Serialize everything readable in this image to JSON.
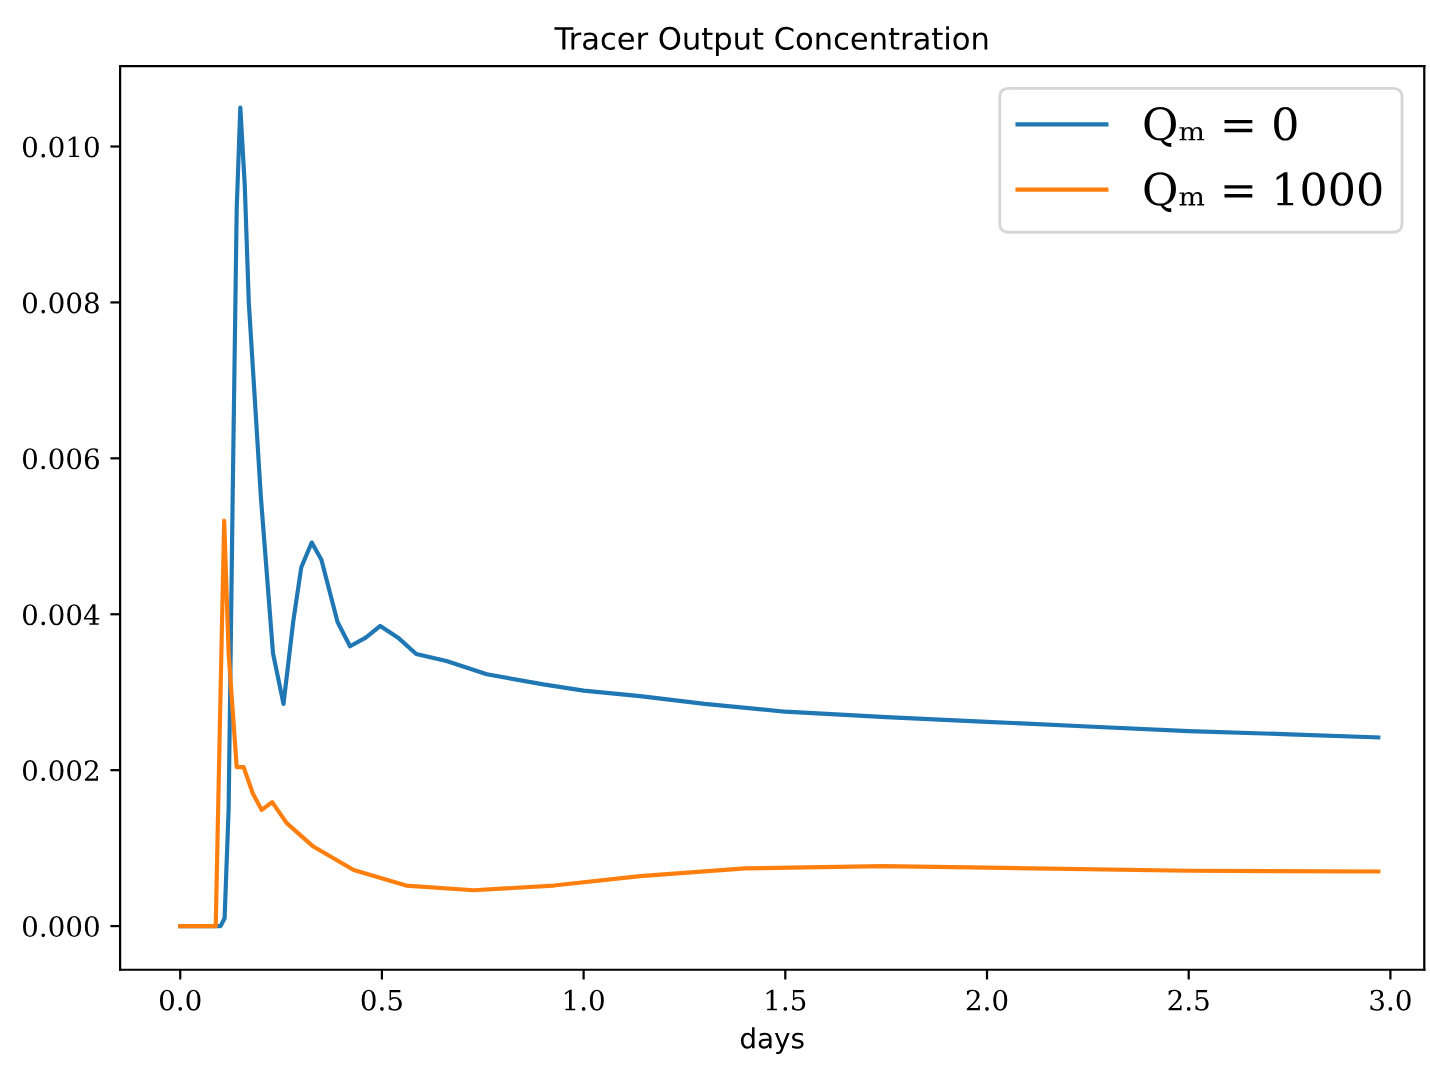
{
  "chart_data": {
    "type": "line",
    "title": "Tracer Output Concentration",
    "xlabel": "days",
    "xlim": [
      -0.149,
      3.084
    ],
    "ylim": [
      -0.00056,
      0.01103
    ],
    "xticks": [
      {
        "value": 0,
        "label": "0.0"
      },
      {
        "value": 0.5,
        "label": "0.5"
      },
      {
        "value": 1,
        "label": "1.0"
      },
      {
        "value": 1.5,
        "label": "1.5"
      },
      {
        "value": 2,
        "label": "2.0"
      },
      {
        "value": 2.5,
        "label": "2.5"
      },
      {
        "value": 3,
        "label": "3.0"
      }
    ],
    "yticks": [
      {
        "value": 0,
        "label": "0.000"
      },
      {
        "value": 0.002,
        "label": "0.002"
      },
      {
        "value": 0.004,
        "label": "0.004"
      },
      {
        "value": 0.006,
        "label": "0.006"
      },
      {
        "value": 0.008,
        "label": "0.008"
      },
      {
        "value": 0.01,
        "label": "0.010"
      }
    ],
    "grid": false,
    "legend": "top right",
    "series": [
      {
        "name": "Qₘ = 0",
        "color": "#1f77b4",
        "x": [
          0,
          0.1,
          0.11,
          0.12,
          0.13,
          0.14,
          0.149,
          0.16,
          0.17,
          0.2,
          0.23,
          0.256,
          0.28,
          0.3,
          0.326,
          0.35,
          0.39,
          0.421,
          0.46,
          0.496,
          0.54,
          0.585,
          0.66,
          0.76,
          0.9,
          1.0,
          1.14,
          1.3,
          1.5,
          1.75,
          2.0,
          2.25,
          2.5,
          2.75,
          2.97
        ],
        "values": [
          0,
          0,
          0.0001,
          0.0015,
          0.0055,
          0.0092,
          0.0105,
          0.0095,
          0.008,
          0.0055,
          0.0035,
          0.00285,
          0.0039,
          0.0046,
          0.00492,
          0.0047,
          0.0039,
          0.00359,
          0.0037,
          0.00385,
          0.0037,
          0.00349,
          0.0034,
          0.00323,
          0.0031,
          0.00302,
          0.00295,
          0.00285,
          0.00275,
          0.00268,
          0.00262,
          0.00256,
          0.0025,
          0.00246,
          0.00242
        ]
      },
      {
        "name": "Qₘ = 1000",
        "color": "#ff7f0e",
        "x": [
          0,
          0.088,
          0.1,
          0.109,
          0.12,
          0.14,
          0.157,
          0.18,
          0.202,
          0.228,
          0.264,
          0.33,
          0.43,
          0.56,
          0.727,
          0.926,
          1.14,
          1.4,
          1.74,
          2.0,
          2.5,
          2.97
        ],
        "values": [
          0,
          0,
          0.003,
          0.0052,
          0.0035,
          0.00204,
          0.00204,
          0.0017,
          0.00149,
          0.00159,
          0.00132,
          0.00102,
          0.00072,
          0.00052,
          0.00046,
          0.00052,
          0.00064,
          0.00074,
          0.00077,
          0.00075,
          0.00071,
          0.0007
        ]
      }
    ]
  }
}
